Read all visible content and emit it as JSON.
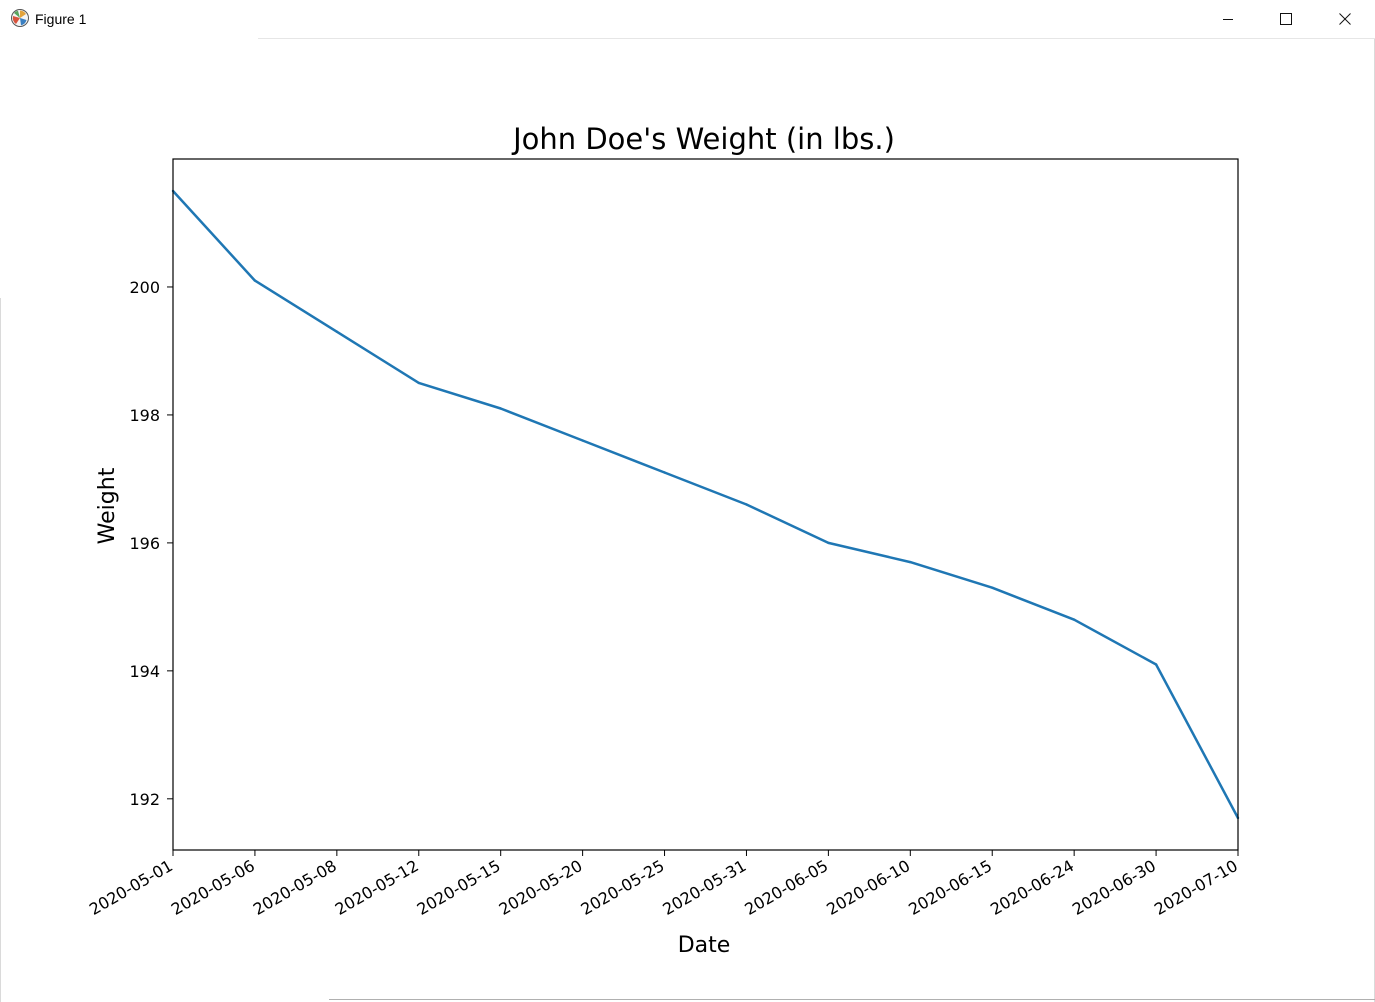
{
  "window": {
    "title": "Figure 1",
    "icon": "matplotlib-icon",
    "controls": [
      "minimize-icon",
      "maximize-icon",
      "close-icon"
    ]
  },
  "chart_data": {
    "type": "line",
    "title": "John Doe's Weight  (in lbs.)",
    "xlabel": "Date",
    "ylabel": "Weight",
    "x": [
      "2020-05-01",
      "2020-05-06",
      "2020-05-08",
      "2020-05-12",
      "2020-05-15",
      "2020-05-20",
      "2020-05-25",
      "2020-05-31",
      "2020-06-05",
      "2020-06-10",
      "2020-06-15",
      "2020-06-24",
      "2020-06-30",
      "2020-07-10"
    ],
    "series": [
      {
        "color": "#1f77b4",
        "values": [
          201.5,
          200.1,
          199.3,
          198.5,
          198.1,
          197.6,
          197.1,
          196.6,
          196.0,
          195.7,
          195.3,
          194.8,
          194.1,
          191.7
        ]
      }
    ],
    "yticks": [
      192,
      194,
      196,
      198,
      200
    ],
    "ylim": [
      191.2,
      202.0
    ],
    "grid": false,
    "legend": "none",
    "xtick_rotation": 30
  }
}
